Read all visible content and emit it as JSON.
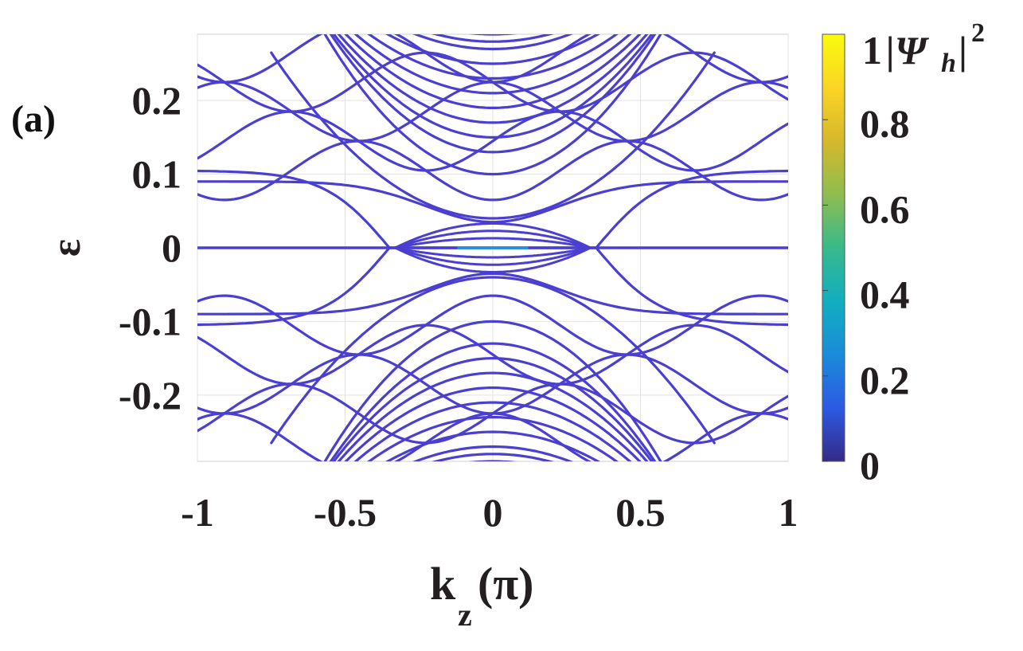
{
  "panel_label": "(a)",
  "chart_data": {
    "type": "line",
    "title": "",
    "xlabel": "k_z(π)",
    "xlabel_main": "k",
    "xlabel_sub": "z",
    "xlabel_unit": "(π)",
    "ylabel": "ε",
    "xlim": [
      -1,
      1
    ],
    "ylim": [
      -0.29,
      0.29
    ],
    "x_ticks": [
      -1,
      -0.5,
      0,
      0.5,
      1
    ],
    "x_tick_labels": [
      "-1",
      "-0.5",
      "0",
      "0.5",
      "1"
    ],
    "y_ticks": [
      -0.2,
      -0.1,
      0,
      0.1,
      0.2
    ],
    "y_tick_labels": [
      "-0.2",
      "-0.1",
      "0",
      "0.1",
      "0.2"
    ],
    "grid": true,
    "line_color": "#4a3fd0",
    "band_groups": [
      {
        "name": "",
        "kind": "flat",
        "energy": 0.0
      },
      {
        "name": "",
        "kind": "inner-valence",
        "energies": [
          0.04,
          0.1,
          0.13,
          0.15,
          0.17,
          0.19,
          0.21,
          0.23,
          0.25,
          0.27,
          0.28,
          0.29
        ]
      },
      {
        "name": "",
        "kind": "outer",
        "energies": [
          0.105,
          0.145,
          0.185,
          0.225,
          0.265
        ]
      },
      {
        "name": "",
        "kind": "fermi-arc-pocket",
        "energies": [
          0.013,
          0.023,
          0.033
        ]
      }
    ],
    "colorbar": {
      "label": "|Ψ_h|²",
      "label_prefix": "1",
      "label_symbol": "|Ψ",
      "label_sub": "h",
      "label_close": "|",
      "label_sup": "2",
      "range": [
        0,
        1
      ],
      "ticks": [
        0,
        0.2,
        0.4,
        0.6,
        0.8,
        1
      ],
      "tick_labels": [
        "0",
        "0.2",
        "0.4",
        "0.6",
        "0.8"
      ],
      "colormap": "parula",
      "stops": [
        "#352a87",
        "#2c5ae3",
        "#1a8cd9",
        "#12aec0",
        "#39b98b",
        "#8fbd4f",
        "#d6b82c",
        "#fbd424",
        "#f9fb0e"
      ]
    }
  }
}
